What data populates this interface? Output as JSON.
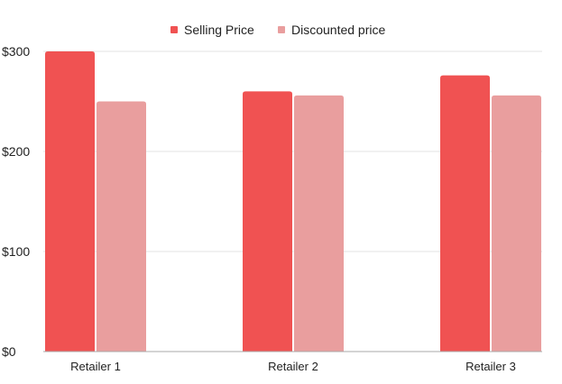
{
  "chart_data": {
    "type": "bar",
    "categories": [
      "Retailer 1",
      "Retailer 2",
      "Retailer 3"
    ],
    "series": [
      {
        "name": "Selling Price",
        "values": [
          300,
          260,
          276
        ],
        "color": "#f05252"
      },
      {
        "name": "Discounted price",
        "values": [
          250,
          256,
          256
        ],
        "color": "#e99e9e"
      }
    ],
    "title": "",
    "xlabel": "",
    "ylabel": "",
    "ylim": [
      0,
      300
    ],
    "yticks": [
      "$0",
      "$100",
      "$200",
      "$300"
    ],
    "ytick_values": [
      0,
      100,
      200,
      300
    ],
    "grid": true,
    "legend_position": "top-center",
    "colors": {
      "grid": "#e3e3e3",
      "axis": "#aaaaaa",
      "text": "#222222"
    }
  }
}
